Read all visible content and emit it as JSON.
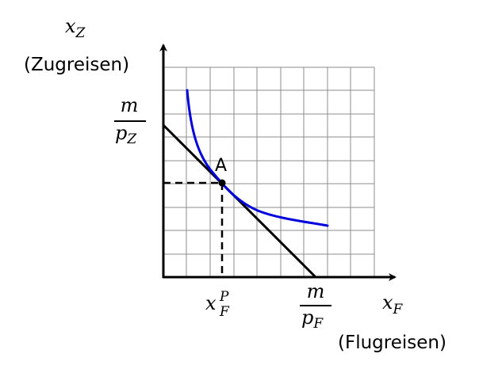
{
  "axes": {
    "y_symbol": "x",
    "y_subscript": "Z",
    "y_caption": "(Zugreisen)",
    "x_symbol": "x",
    "x_subscript": "F",
    "x_caption": "(Flugreisen)"
  },
  "intercepts": {
    "y_numerator": "m",
    "y_denominator_symbol": "p",
    "y_denominator_subscript": "Z",
    "x_numerator": "m",
    "x_denominator_symbol": "p",
    "x_denominator_subscript": "F"
  },
  "point": {
    "label": "A",
    "x_tick_symbol": "x",
    "x_tick_subscript": "F",
    "x_tick_superscript": "P"
  },
  "colors": {
    "curve": "#0000dd",
    "axes": "#000000",
    "grid": "#8c8c8c"
  }
}
